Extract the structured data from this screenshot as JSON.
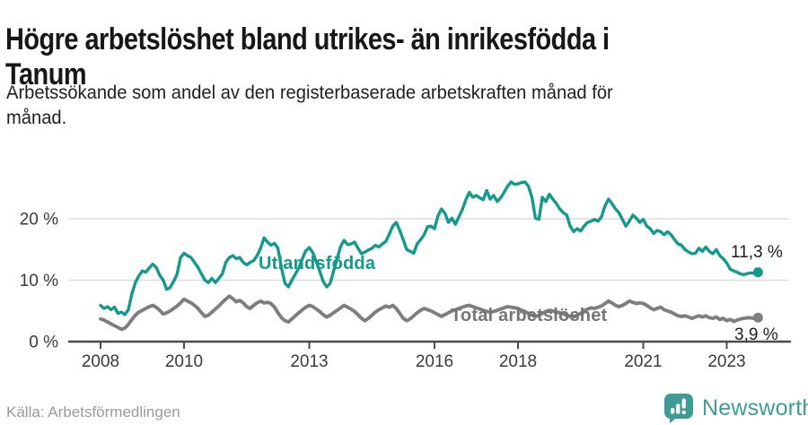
{
  "header": {
    "title_lines": [
      "Högre arbetslöshet bland utrikes- än inrikesfödda i",
      "Tanum"
    ],
    "subtitle_lines": [
      "Arbetssökande som andel av den registerbaserade arbetskraften månad för",
      "månad."
    ]
  },
  "footer": {
    "source": "Källa: Arbetsförmedlingen",
    "brand": "Newsworthy",
    "logo_icon": "bar-chart-speech-bubble-icon",
    "brand_color": "#3E9C94"
  },
  "chart_data": {
    "type": "line",
    "x_start_year": 2008,
    "x_step_months": 1,
    "x_end": "2023-10",
    "x_tick_years": [
      2008,
      2010,
      2013,
      2016,
      2018,
      2021,
      2023
    ],
    "x_tick_labels": [
      "2008",
      "2010",
      "2013",
      "2016",
      "2018",
      "2021",
      "2023"
    ],
    "y_ticks": [
      0,
      10,
      20
    ],
    "y_tick_labels": [
      "0 %",
      "10 %",
      "20 %"
    ],
    "ylim": [
      0,
      27.5
    ],
    "grid": "horizontal",
    "legend_position": "inline-labels",
    "colors": {
      "grid": "#dcdcdc",
      "axis": "#4a4a4a",
      "tick_text": "#3a3a3a"
    },
    "series": [
      {
        "name": "Utlandsfödda",
        "color": "#14998D",
        "width": 3.4,
        "end_label": "11,3 %",
        "end_value": 11.3,
        "values": [
          5.9,
          5.4,
          5.7,
          5.2,
          5.6,
          4.6,
          4.8,
          4.4,
          5.2,
          7.8,
          9.6,
          10.7,
          11.5,
          11.3,
          12.0,
          12.6,
          12.1,
          10.8,
          10.0,
          8.5,
          8.8,
          9.8,
          11.0,
          13.7,
          14.4,
          14.0,
          13.7,
          12.9,
          12.1,
          11.0,
          10.0,
          9.6,
          10.3,
          9.6,
          10.3,
          11.0,
          12.9,
          13.7,
          14.0,
          13.5,
          13.7,
          12.9,
          12.5,
          12.9,
          13.2,
          14.0,
          15.2,
          16.9,
          16.2,
          15.7,
          16.0,
          15.2,
          12.0,
          9.5,
          8.9,
          10.0,
          11.0,
          12.0,
          13.5,
          14.8,
          15.3,
          14.5,
          13.0,
          11.5,
          9.8,
          8.9,
          9.5,
          11.5,
          13.5,
          15.5,
          16.5,
          15.8,
          15.9,
          16.2,
          15.2,
          14.3,
          14.6,
          14.9,
          15.2,
          15.7,
          15.4,
          15.9,
          16.3,
          17.5,
          18.8,
          19.4,
          18.1,
          16.6,
          15.0,
          14.7,
          14.4,
          15.9,
          16.6,
          17.4,
          18.7,
          18.8,
          18.4,
          20.5,
          21.6,
          20.9,
          19.4,
          20.1,
          19.1,
          20.3,
          21.5,
          23.1,
          24.3,
          23.5,
          23.8,
          23.4,
          23.1,
          24.6,
          23.2,
          23.8,
          22.8,
          23.4,
          24.3,
          25.3,
          26.0,
          25.6,
          25.7,
          25.9,
          26.0,
          25.3,
          23.5,
          20.1,
          19.9,
          23.5,
          22.8,
          24.0,
          23.2,
          22.5,
          21.6,
          21.0,
          20.6,
          18.8,
          17.9,
          18.4,
          18.0,
          18.8,
          19.4,
          19.6,
          19.9,
          19.6,
          20.3,
          22.1,
          23.2,
          22.5,
          21.6,
          21.0,
          19.9,
          18.8,
          19.6,
          20.6,
          20.1,
          19.4,
          19.9,
          18.8,
          18.4,
          17.6,
          18.1,
          17.9,
          17.4,
          17.9,
          17.4,
          16.6,
          15.9,
          15.7,
          15.0,
          14.6,
          14.3,
          14.4,
          15.2,
          14.7,
          15.4,
          14.7,
          14.3,
          15.0,
          14.0,
          13.5,
          12.8,
          11.8,
          11.5,
          11.3,
          11.0,
          10.9,
          11.1,
          11.2,
          11.1,
          11.3
        ]
      },
      {
        "name": "Total arbetslöshet",
        "color": "#7E7E7E",
        "width": 3.9,
        "end_label": "3,9 %",
        "end_value": 3.9,
        "values": [
          3.7,
          3.5,
          3.2,
          2.9,
          2.6,
          2.3,
          2.0,
          2.2,
          2.8,
          3.6,
          4.3,
          4.8,
          5.1,
          5.4,
          5.7,
          5.9,
          5.6,
          5.1,
          4.5,
          4.7,
          5.0,
          5.4,
          5.8,
          6.3,
          6.9,
          6.6,
          6.3,
          5.9,
          5.4,
          4.7,
          4.1,
          4.3,
          4.8,
          5.3,
          5.8,
          6.4,
          6.9,
          7.4,
          7.0,
          6.5,
          6.7,
          6.3,
          5.7,
          5.4,
          5.9,
          6.3,
          6.6,
          6.3,
          6.4,
          6.2,
          5.6,
          4.7,
          3.9,
          3.4,
          3.2,
          3.7,
          4.2,
          4.7,
          5.2,
          5.6,
          5.9,
          5.7,
          5.3,
          4.9,
          4.4,
          4.0,
          4.3,
          4.7,
          5.1,
          5.5,
          5.9,
          5.6,
          5.3,
          4.9,
          4.4,
          3.8,
          3.4,
          3.8,
          4.3,
          4.8,
          5.2,
          5.5,
          5.8,
          5.6,
          5.9,
          5.4,
          4.6,
          3.8,
          3.4,
          3.7,
          4.2,
          4.7,
          5.1,
          5.4,
          5.2,
          5.0,
          4.7,
          4.4,
          4.1,
          4.4,
          4.7,
          5.0,
          5.2,
          5.4,
          5.6,
          5.8,
          5.9,
          5.7,
          5.5,
          5.3,
          5.1,
          4.9,
          4.8,
          4.9,
          5.1,
          5.3,
          5.5,
          5.7,
          5.6,
          5.5,
          5.4,
          5.1,
          4.9,
          4.6,
          4.3,
          4.1,
          4.3,
          4.6,
          4.9,
          5.1,
          5.0,
          4.8,
          4.7,
          4.5,
          4.3,
          4.1,
          4.0,
          4.3,
          4.6,
          5.0,
          5.3,
          5.5,
          5.4,
          5.6,
          5.8,
          6.2,
          6.6,
          6.3,
          5.9,
          5.7,
          5.9,
          6.2,
          6.6,
          6.4,
          6.2,
          6.3,
          6.2,
          5.9,
          5.5,
          5.2,
          5.4,
          5.6,
          5.2,
          5.0,
          4.8,
          4.5,
          4.2,
          4.1,
          4.2,
          4.0,
          3.8,
          4.0,
          4.2,
          4.0,
          4.2,
          3.9,
          3.8,
          4.0,
          3.6,
          3.8,
          3.4,
          3.6,
          3.3,
          3.5,
          3.7,
          3.8,
          3.9,
          3.85,
          3.8,
          3.9
        ]
      }
    ]
  }
}
